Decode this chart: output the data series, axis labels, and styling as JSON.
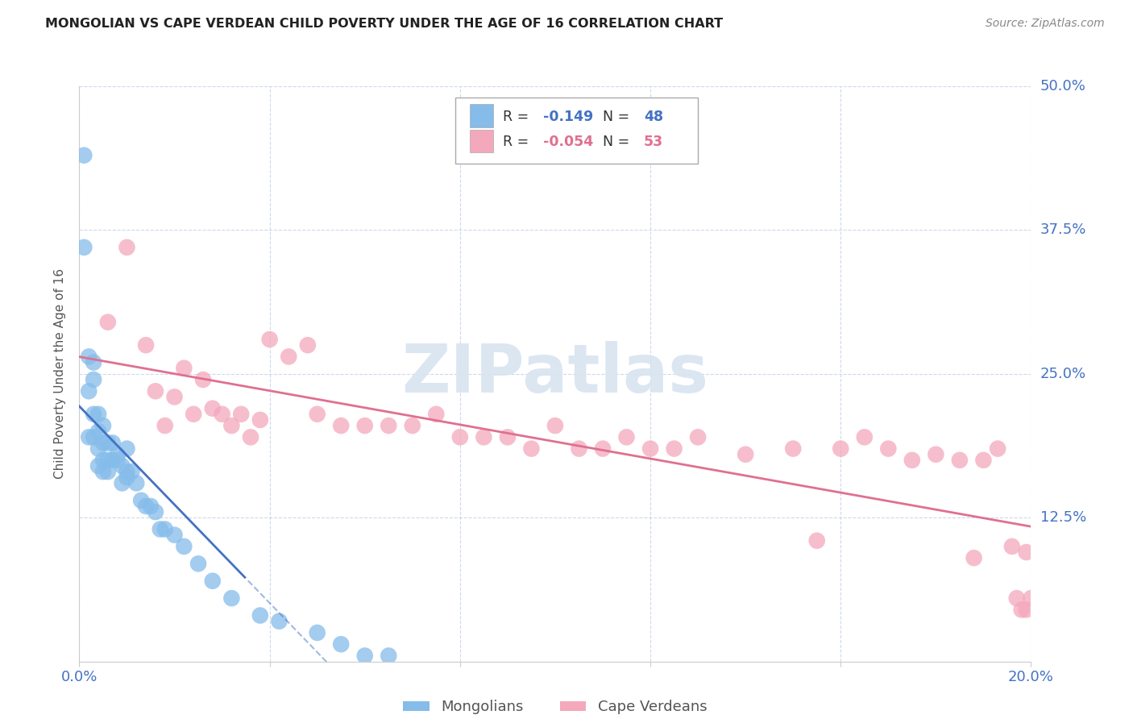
{
  "title": "MONGOLIAN VS CAPE VERDEAN CHILD POVERTY UNDER THE AGE OF 16 CORRELATION CHART",
  "source": "Source: ZipAtlas.com",
  "ylabel": "Child Poverty Under the Age of 16",
  "ytick_vals": [
    0.0,
    0.125,
    0.25,
    0.375,
    0.5
  ],
  "ytick_labels": [
    "",
    "12.5%",
    "25.0%",
    "37.5%",
    "50.0%"
  ],
  "xtick_vals": [
    0.0,
    0.04,
    0.08,
    0.12,
    0.16,
    0.2
  ],
  "xtick_labels": [
    "0.0%",
    "",
    "",
    "",
    "",
    "20.0%"
  ],
  "xlim": [
    0.0,
    0.2
  ],
  "ylim": [
    0.0,
    0.5
  ],
  "legend_mongolian": "Mongolians",
  "legend_cape_verdean": "Cape Verdeans",
  "R_mongolian": -0.149,
  "N_mongolian": 48,
  "R_cape_verdean": -0.054,
  "N_cape_verdean": 53,
  "mongolian_color": "#85BCEA",
  "cape_verdean_color": "#F4A8BC",
  "trend_mongolian_color": "#4472C4",
  "trend_cape_verdean_color": "#E07090",
  "grid_color": "#C0D0E8",
  "watermark_color": "#D8E4F0",
  "mongolian_x": [
    0.001,
    0.001,
    0.002,
    0.002,
    0.002,
    0.003,
    0.003,
    0.003,
    0.003,
    0.004,
    0.004,
    0.004,
    0.004,
    0.005,
    0.005,
    0.005,
    0.005,
    0.006,
    0.006,
    0.006,
    0.007,
    0.007,
    0.008,
    0.008,
    0.009,
    0.009,
    0.01,
    0.01,
    0.01,
    0.011,
    0.012,
    0.013,
    0.014,
    0.015,
    0.016,
    0.017,
    0.018,
    0.02,
    0.022,
    0.025,
    0.028,
    0.032,
    0.038,
    0.042,
    0.05,
    0.055,
    0.06,
    0.065
  ],
  "mongolian_y": [
    0.44,
    0.36,
    0.265,
    0.235,
    0.195,
    0.26,
    0.245,
    0.215,
    0.195,
    0.215,
    0.2,
    0.185,
    0.17,
    0.205,
    0.19,
    0.175,
    0.165,
    0.19,
    0.175,
    0.165,
    0.19,
    0.175,
    0.18,
    0.175,
    0.17,
    0.155,
    0.185,
    0.165,
    0.16,
    0.165,
    0.155,
    0.14,
    0.135,
    0.135,
    0.13,
    0.115,
    0.115,
    0.11,
    0.1,
    0.085,
    0.07,
    0.055,
    0.04,
    0.035,
    0.025,
    0.015,
    0.005,
    0.005
  ],
  "cape_verdean_x": [
    0.006,
    0.01,
    0.014,
    0.016,
    0.018,
    0.02,
    0.022,
    0.024,
    0.026,
    0.028,
    0.03,
    0.032,
    0.034,
    0.036,
    0.038,
    0.04,
    0.044,
    0.048,
    0.05,
    0.055,
    0.06,
    0.065,
    0.07,
    0.075,
    0.08,
    0.085,
    0.09,
    0.095,
    0.1,
    0.105,
    0.11,
    0.115,
    0.12,
    0.125,
    0.13,
    0.14,
    0.15,
    0.155,
    0.16,
    0.165,
    0.17,
    0.175,
    0.18,
    0.185,
    0.188,
    0.19,
    0.193,
    0.196,
    0.197,
    0.198,
    0.199,
    0.199,
    0.2
  ],
  "cape_verdean_y": [
    0.295,
    0.36,
    0.275,
    0.235,
    0.205,
    0.23,
    0.255,
    0.215,
    0.245,
    0.22,
    0.215,
    0.205,
    0.215,
    0.195,
    0.21,
    0.28,
    0.265,
    0.275,
    0.215,
    0.205,
    0.205,
    0.205,
    0.205,
    0.215,
    0.195,
    0.195,
    0.195,
    0.185,
    0.205,
    0.185,
    0.185,
    0.195,
    0.185,
    0.185,
    0.195,
    0.18,
    0.185,
    0.105,
    0.185,
    0.195,
    0.185,
    0.175,
    0.18,
    0.175,
    0.09,
    0.175,
    0.185,
    0.1,
    0.055,
    0.045,
    0.095,
    0.045,
    0.055
  ]
}
